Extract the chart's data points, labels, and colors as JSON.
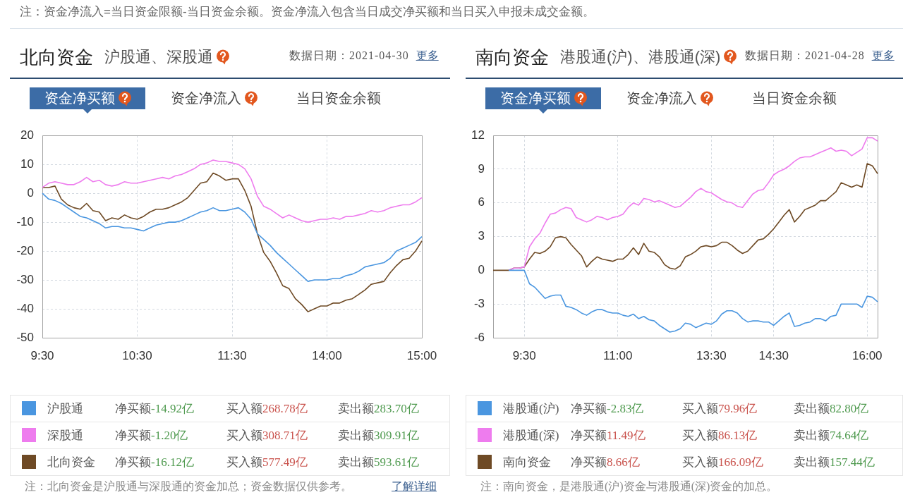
{
  "chart_data": [
    {
      "type": "line",
      "title": "北向资金",
      "subtitle": "沪股通、深股通",
      "categories": [
        "9:30",
        null,
        null,
        null,
        null,
        null,
        null,
        null,
        null,
        null,
        null,
        null,
        null,
        null,
        null,
        "10:30",
        null,
        null,
        null,
        null,
        null,
        null,
        null,
        null,
        null,
        null,
        null,
        null,
        null,
        null,
        "11:30",
        null,
        null,
        null,
        null,
        null,
        null,
        null,
        null,
        null,
        null,
        null,
        null,
        null,
        null,
        "14:00",
        null,
        null,
        null,
        null,
        null,
        null,
        null,
        null,
        null,
        null,
        null,
        null,
        null,
        null,
        "15:00"
      ],
      "series": [
        {
          "name": "沪股通",
          "color": "#4a96e0",
          "values": [
            0,
            -2,
            -2.5,
            -3.5,
            -5,
            -6.5,
            -8,
            -8.5,
            -9.5,
            -10.5,
            -12,
            -11.5,
            -11.5,
            -12,
            -12,
            -12.5,
            -13,
            -12,
            -11,
            -10.5,
            -10,
            -10,
            -9.5,
            -8.5,
            -7.5,
            -6.5,
            -6,
            -5,
            -6,
            -6,
            -5.5,
            -5,
            -6.5,
            -9,
            -14,
            -16,
            -18,
            -20.5,
            -22.5,
            -24.5,
            -26.5,
            -28.5,
            -30.5,
            -30,
            -30,
            -30,
            -29.5,
            -29.5,
            -28.5,
            -28,
            -27,
            -25.5,
            -25,
            -24.5,
            -24,
            -22.5,
            -20,
            -19,
            -18,
            -17,
            -15
          ]
        },
        {
          "name": "深股通",
          "color": "#ee7cee",
          "values": [
            2,
            3.5,
            4,
            3.5,
            3,
            3,
            4,
            5.5,
            4,
            4.5,
            3,
            2.5,
            3,
            4,
            3.5,
            3.5,
            4,
            4.5,
            5,
            5.5,
            5,
            6,
            6.5,
            7.5,
            8.5,
            10,
            10.5,
            11.5,
            11,
            11,
            10.5,
            10,
            8.5,
            5,
            -1,
            -4.5,
            -5.5,
            -7,
            -8.5,
            -7.5,
            -8.5,
            -9.5,
            -10,
            -9.5,
            -9,
            -9,
            -8.5,
            -9,
            -8,
            -8,
            -7.5,
            -7,
            -6,
            -6.5,
            -6,
            -5,
            -4.5,
            -4,
            -4,
            -3,
            -1.5
          ]
        },
        {
          "name": "北向资金",
          "color": "#6e4a25",
          "values": [
            2,
            2,
            2.5,
            -2,
            -4,
            -5,
            -5.5,
            -3.5,
            -6,
            -6.5,
            -9.5,
            -8.5,
            -9,
            -7.5,
            -8.5,
            -9,
            -8,
            -6.5,
            -5.5,
            -5.5,
            -5,
            -4,
            -3,
            -1.5,
            1,
            3.5,
            4,
            7,
            6,
            4.5,
            5,
            5,
            1,
            -4.5,
            -14,
            -20.5,
            -23.5,
            -27.5,
            -32,
            -33,
            -36.5,
            -38.5,
            -41,
            -40,
            -39,
            -39,
            -38,
            -38,
            -37,
            -36.5,
            -35,
            -33.5,
            -31.5,
            -31,
            -30.5,
            -27.5,
            -25,
            -23,
            -22.5,
            -20,
            -16.5
          ]
        }
      ],
      "ylim": [
        -50,
        20
      ],
      "yticks": [
        -50,
        -40,
        -30,
        -20,
        -10,
        0,
        10,
        20
      ],
      "grid": true,
      "legend": "bottom",
      "annotations": [
        "注：资金净流入=当日资金限额-当日资金余额。资金净流入包含当日成交净买额和当日买入申报未成交金额。",
        "数据日期：2021-04-30",
        "更多",
        "资金净买额",
        "资金净流入",
        "当日资金余额",
        "净买额-14.92亿",
        "买入额268.78亿",
        "卖出额283.70亿",
        "净买额-1.20亿",
        "买入额308.71亿",
        "卖出额309.91亿",
        "净买额-16.12亿",
        "买入额577.49亿",
        "卖出额593.61亿",
        "注：北向资金是沪股通与深股通的资金加总；资金数据仅供参考。",
        "了解详细"
      ]
    },
    {
      "type": "line",
      "title": "南向资金",
      "subtitle": "港股通(沪)、港股通(深)",
      "categories": [
        null,
        null,
        null,
        null,
        null,
        null,
        "9:30",
        null,
        null,
        null,
        null,
        null,
        null,
        null,
        null,
        null,
        null,
        null,
        null,
        null,
        null,
        null,
        null,
        null,
        "11:00",
        null,
        null,
        null,
        null,
        null,
        null,
        null,
        null,
        null,
        null,
        null,
        null,
        null,
        null,
        null,
        null,
        null,
        "13:30",
        null,
        null,
        null,
        null,
        null,
        null,
        null,
        null,
        null,
        null,
        null,
        "14:30",
        null,
        null,
        null,
        null,
        null,
        null,
        null,
        null,
        null,
        null,
        null,
        null,
        null,
        null,
        null,
        null,
        null,
        "16:00",
        null,
        null
      ],
      "series": [
        {
          "name": "港股通(沪)",
          "color": "#4a96e0",
          "values": [
            null,
            null,
            null,
            0,
            0,
            0,
            0,
            -1.2,
            -1.5,
            -2,
            -2.5,
            -2.3,
            -2.2,
            -2.2,
            -3.2,
            -3.3,
            -3.5,
            -3.8,
            -4,
            -3.7,
            -3.5,
            -3.5,
            -3.7,
            -3.8,
            -3.8,
            -4,
            -4.1,
            -3.9,
            -4.3,
            -4.1,
            -4.4,
            -4.5,
            -4.9,
            -5.2,
            -5.5,
            -5.4,
            -5.2,
            -4.7,
            -4.8,
            -5.1,
            -4.9,
            -4.7,
            -4.8,
            -4.5,
            -3.9,
            -3.6,
            -3.6,
            -3.8,
            -4.3,
            -4.6,
            -4.5,
            -4.5,
            -4.6,
            -4.6,
            -4.9,
            -4.5,
            -4.1,
            -3.8,
            -5,
            -4.9,
            -4.7,
            -4.6,
            -4.3,
            -4.3,
            -4.5,
            -4.1,
            -4,
            -3,
            -3,
            -3,
            -3,
            -3.3,
            -2.3,
            -2.4,
            -2.8
          ]
        },
        {
          "name": "港股通(深)",
          "color": "#ee7cee",
          "values": [
            null,
            null,
            null,
            0,
            0.2,
            0.2,
            0.3,
            2.1,
            2.8,
            3.3,
            4.2,
            5,
            5.1,
            5.4,
            5.6,
            5.5,
            4.7,
            4.5,
            4.3,
            4.5,
            4.8,
            4.7,
            4.5,
            4.7,
            4.8,
            5,
            5.6,
            6,
            5.8,
            6.4,
            6.3,
            6.1,
            6.2,
            6,
            5.8,
            5.6,
            5.7,
            6.1,
            6.5,
            7,
            7.3,
            7,
            6.9,
            6.6,
            6.3,
            6.1,
            6,
            5.7,
            5.6,
            6.2,
            6.8,
            7.1,
            7.2,
            7.8,
            8.5,
            8.8,
            9,
            9.3,
            9.7,
            10,
            10.1,
            10.1,
            10.3,
            10.5,
            10.7,
            10.9,
            10.6,
            10.7,
            10.6,
            10.2,
            10.5,
            10.8,
            11.8,
            11.8,
            11.5
          ]
        },
        {
          "name": "南向资金",
          "color": "#6e4a25",
          "values": [
            0,
            0,
            0,
            0,
            0.2,
            0.2,
            0.3,
            1,
            1.6,
            1.5,
            1.7,
            2.1,
            2.9,
            3,
            2.9,
            2.3,
            1.8,
            1.3,
            0.3,
            0.8,
            1.2,
            1,
            0.9,
            0.8,
            1,
            1,
            1.4,
            2,
            1.4,
            2.4,
            1.7,
            1.6,
            1.2,
            0.5,
            0.2,
            0.1,
            0.4,
            1.2,
            1.4,
            1.7,
            2.1,
            2.2,
            2.1,
            2.2,
            2.5,
            2.5,
            2.2,
            1.8,
            1.5,
            1.7,
            2.2,
            2.7,
            2.8,
            3.2,
            3.7,
            4.3,
            4.9,
            5.4,
            4.3,
            4.8,
            5.4,
            5.6,
            5.8,
            6.2,
            6.2,
            6.6,
            7,
            7.8,
            7.6,
            7.4,
            7.6,
            7.4,
            9.5,
            9.3,
            8.6
          ]
        }
      ],
      "ylim": [
        -6,
        12
      ],
      "yticks": [
        -6,
        -3,
        0,
        3,
        6,
        9,
        12
      ],
      "grid": true,
      "legend": "bottom",
      "annotations": [
        "数据日期：2021-04-28",
        "更多",
        "资金净买额",
        "资金净流入",
        "当日资金余额",
        "净买额-2.83亿",
        "买入额79.96亿",
        "卖出额82.80亿",
        "净买额11.49亿",
        "买入额86.13亿",
        "卖出额74.64亿",
        "净买额8.66亿",
        "买入额166.09亿",
        "卖出额157.44亿",
        "注：南向资金，是港股通(沪)资金与港股通(深)资金的加总。"
      ]
    }
  ]
}
